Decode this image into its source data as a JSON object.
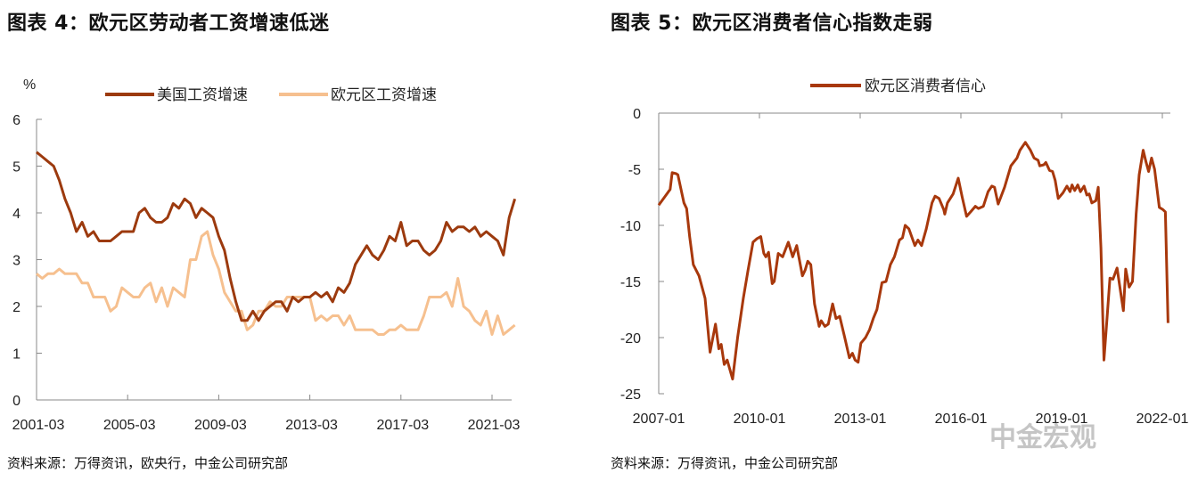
{
  "left": {
    "title": "图表 4：欧元区劳动者工资增速低迷",
    "source": "资料来源：万得资讯，欧央行，中金公司研究部"
  },
  "right": {
    "title": "图表 5：欧元区消费者信心指数走弱",
    "source": "资料来源：万得资讯，中金公司研究部"
  },
  "watermark": "中金宏观",
  "chart_data": [
    {
      "type": "line",
      "ylabel": "%",
      "ylim": [
        0,
        6
      ],
      "yticks": [
        0,
        1,
        2,
        3,
        4,
        5,
        6
      ],
      "x_unit": "quarter index from 2001-03",
      "xticks": [
        {
          "i": 0,
          "label": "2001-03"
        },
        {
          "i": 16,
          "label": "2005-03"
        },
        {
          "i": 32,
          "label": "2009-03"
        },
        {
          "i": 48,
          "label": "2013-03"
        },
        {
          "i": 64,
          "label": "2017-03"
        },
        {
          "i": 80,
          "label": "2021-03"
        }
      ],
      "legend": "top",
      "series": [
        {
          "name": "美国工资增速",
          "color": "#9c3a0e",
          "values": [
            5.3,
            5.2,
            5.1,
            5.0,
            4.7,
            4.3,
            4.0,
            3.6,
            3.8,
            3.5,
            3.6,
            3.4,
            3.4,
            3.4,
            3.5,
            3.6,
            3.6,
            3.6,
            4.0,
            4.1,
            3.9,
            3.8,
            3.8,
            3.9,
            4.2,
            4.1,
            4.3,
            4.2,
            3.9,
            4.1,
            4.0,
            3.9,
            3.5,
            3.2,
            2.6,
            2.1,
            1.7,
            1.7,
            1.9,
            1.7,
            1.9,
            2.0,
            2.1,
            2.1,
            1.9,
            2.2,
            2.1,
            2.2,
            2.2,
            2.3,
            2.2,
            2.3,
            2.1,
            2.4,
            2.3,
            2.5,
            2.9,
            3.1,
            3.3,
            3.1,
            3.0,
            3.2,
            3.5,
            3.4,
            3.8,
            3.3,
            3.4,
            3.4,
            3.2,
            3.1,
            3.2,
            3.4,
            3.8,
            3.6,
            3.7,
            3.7,
            3.6,
            3.7,
            3.5,
            3.6,
            3.5,
            3.4,
            3.1,
            3.9,
            4.3
          ]
        },
        {
          "name": "欧元区工资增速",
          "color": "#f6c08f",
          "values": [
            2.7,
            2.6,
            2.7,
            2.7,
            2.8,
            2.7,
            2.7,
            2.7,
            2.5,
            2.5,
            2.2,
            2.2,
            2.2,
            1.9,
            2.0,
            2.4,
            2.3,
            2.2,
            2.2,
            2.4,
            2.5,
            2.1,
            2.4,
            2.0,
            2.4,
            2.3,
            2.2,
            3.0,
            3.0,
            3.5,
            3.6,
            3.1,
            2.8,
            2.3,
            2.1,
            1.9,
            1.9,
            1.5,
            1.6,
            1.9,
            1.9,
            2.1,
            2.0,
            2.0,
            2.2,
            2.2,
            2.2,
            2.2,
            2.2,
            1.7,
            1.8,
            1.7,
            1.8,
            1.8,
            1.6,
            1.8,
            1.5,
            1.5,
            1.5,
            1.5,
            1.4,
            1.4,
            1.5,
            1.5,
            1.6,
            1.5,
            1.5,
            1.5,
            1.8,
            2.2,
            2.2,
            2.2,
            2.3,
            2.0,
            2.6,
            2.0,
            1.9,
            1.7,
            1.6,
            1.9,
            1.4,
            1.8,
            1.4,
            1.5,
            1.6
          ]
        }
      ]
    },
    {
      "type": "line",
      "ylim": [
        -25,
        0
      ],
      "yticks": [
        0,
        -5,
        -10,
        -15,
        -20,
        -25
      ],
      "xlim": [
        2007.0,
        2022.2
      ],
      "xticks": [
        {
          "x": 2007.0,
          "label": "2007-01"
        },
        {
          "x": 2010.0,
          "label": "2010-01"
        },
        {
          "x": 2013.0,
          "label": "2013-01"
        },
        {
          "x": 2016.0,
          "label": "2016-01"
        },
        {
          "x": 2019.0,
          "label": "2019-01"
        },
        {
          "x": 2022.0,
          "label": "2022-01"
        }
      ],
      "legend": "top",
      "series": [
        {
          "name": "欧元区消费者信心",
          "color": "#a8380c",
          "points": [
            [
              2007.0,
              -8.2
            ],
            [
              2007.17,
              -7.5
            ],
            [
              2007.29,
              -7
            ],
            [
              2007.34,
              -6.8
            ],
            [
              2007.4,
              -5.3
            ],
            [
              2007.52,
              -5.4
            ],
            [
              2007.57,
              -5.5
            ],
            [
              2007.75,
              -8
            ],
            [
              2007.83,
              -8.5
            ],
            [
              2007.92,
              -11
            ],
            [
              2008.03,
              -13.5
            ],
            [
              2008.2,
              -14.5
            ],
            [
              2008.38,
              -16.5
            ],
            [
              2008.53,
              -21.3
            ],
            [
              2008.69,
              -18.8
            ],
            [
              2008.79,
              -21
            ],
            [
              2008.86,
              -20.6
            ],
            [
              2008.95,
              -22.4
            ],
            [
              2009.04,
              -22
            ],
            [
              2009.2,
              -23.7
            ],
            [
              2009.35,
              -20
            ],
            [
              2009.52,
              -16.5
            ],
            [
              2009.66,
              -14
            ],
            [
              2009.81,
              -11.5
            ],
            [
              2009.92,
              -11.2
            ],
            [
              2010.04,
              -11
            ],
            [
              2010.13,
              -12.5
            ],
            [
              2010.19,
              -12.8
            ],
            [
              2010.27,
              -12.4
            ],
            [
              2010.38,
              -15.2
            ],
            [
              2010.44,
              -15
            ],
            [
              2010.56,
              -12.5
            ],
            [
              2010.69,
              -12.8
            ],
            [
              2010.86,
              -11.5
            ],
            [
              2010.99,
              -12.8
            ],
            [
              2011.11,
              -11.8
            ],
            [
              2011.28,
              -14.5
            ],
            [
              2011.36,
              -14
            ],
            [
              2011.44,
              -13.2
            ],
            [
              2011.53,
              -13.5
            ],
            [
              2011.64,
              -17
            ],
            [
              2011.78,
              -19
            ],
            [
              2011.84,
              -18.5
            ],
            [
              2011.95,
              -19
            ],
            [
              2012.05,
              -18.8
            ],
            [
              2012.18,
              -17
            ],
            [
              2012.28,
              -18.3
            ],
            [
              2012.39,
              -18.1
            ],
            [
              2012.54,
              -20
            ],
            [
              2012.68,
              -21.8
            ],
            [
              2012.77,
              -21.4
            ],
            [
              2012.85,
              -22
            ],
            [
              2012.94,
              -22.2
            ],
            [
              2013.02,
              -20.5
            ],
            [
              2013.16,
              -20
            ],
            [
              2013.28,
              -19.3
            ],
            [
              2013.39,
              -18.3
            ],
            [
              2013.5,
              -17.5
            ],
            [
              2013.65,
              -15.1
            ],
            [
              2013.77,
              -15
            ],
            [
              2013.9,
              -13.5
            ],
            [
              2014.02,
              -12.8
            ],
            [
              2014.17,
              -11.3
            ],
            [
              2014.26,
              -11.1
            ],
            [
              2014.34,
              -10
            ],
            [
              2014.45,
              -10.3
            ],
            [
              2014.63,
              -11.8
            ],
            [
              2014.72,
              -11.3
            ],
            [
              2014.83,
              -11.8
            ],
            [
              2014.97,
              -10.3
            ],
            [
              2015.14,
              -8
            ],
            [
              2015.23,
              -7.4
            ],
            [
              2015.35,
              -7.6
            ],
            [
              2015.49,
              -8.6
            ],
            [
              2015.52,
              -9
            ],
            [
              2015.6,
              -8
            ],
            [
              2015.77,
              -7.2
            ],
            [
              2015.92,
              -5.8
            ],
            [
              2016.04,
              -7.5
            ],
            [
              2016.17,
              -9.2
            ],
            [
              2016.29,
              -8.8
            ],
            [
              2016.43,
              -8.3
            ],
            [
              2016.52,
              -8.5
            ],
            [
              2016.67,
              -8.3
            ],
            [
              2016.81,
              -7
            ],
            [
              2016.92,
              -6.5
            ],
            [
              2017.0,
              -6.6
            ],
            [
              2017.11,
              -8.1
            ],
            [
              2017.3,
              -6.6
            ],
            [
              2017.49,
              -4.7
            ],
            [
              2017.67,
              -4
            ],
            [
              2017.76,
              -3.3
            ],
            [
              2017.92,
              -2.6
            ],
            [
              2018.07,
              -3.3
            ],
            [
              2018.18,
              -4
            ],
            [
              2018.3,
              -4.2
            ],
            [
              2018.35,
              -4.7
            ],
            [
              2018.47,
              -4.6
            ],
            [
              2018.53,
              -4.4
            ],
            [
              2018.64,
              -5.1
            ],
            [
              2018.73,
              -5.2
            ],
            [
              2018.81,
              -6
            ],
            [
              2018.9,
              -7.6
            ],
            [
              2019.04,
              -7.1
            ],
            [
              2019.16,
              -6.5
            ],
            [
              2019.25,
              -7
            ],
            [
              2019.31,
              -6.4
            ],
            [
              2019.39,
              -6.9
            ],
            [
              2019.48,
              -6.4
            ],
            [
              2019.56,
              -7
            ],
            [
              2019.67,
              -6.5
            ],
            [
              2019.75,
              -7.3
            ],
            [
              2019.82,
              -7.2
            ],
            [
              2019.9,
              -8
            ],
            [
              2020.02,
              -7.8
            ],
            [
              2020.09,
              -6.6
            ],
            [
              2020.17,
              -12
            ],
            [
              2020.26,
              -22
            ],
            [
              2020.36,
              -18
            ],
            [
              2020.44,
              -14.7
            ],
            [
              2020.53,
              -14.8
            ],
            [
              2020.65,
              -13.8
            ],
            [
              2020.76,
              -16
            ],
            [
              2020.84,
              -17.6
            ],
            [
              2020.91,
              -13.9
            ],
            [
              2021.01,
              -15.5
            ],
            [
              2021.11,
              -15
            ],
            [
              2021.22,
              -9
            ],
            [
              2021.31,
              -5.5
            ],
            [
              2021.43,
              -3.3
            ],
            [
              2021.51,
              -4.3
            ],
            [
              2021.59,
              -5.2
            ],
            [
              2021.68,
              -4
            ],
            [
              2021.77,
              -5
            ],
            [
              2021.91,
              -8.4
            ],
            [
              2022.02,
              -8.6
            ],
            [
              2022.09,
              -8.8
            ],
            [
              2022.17,
              -18.7
            ]
          ]
        }
      ]
    }
  ]
}
